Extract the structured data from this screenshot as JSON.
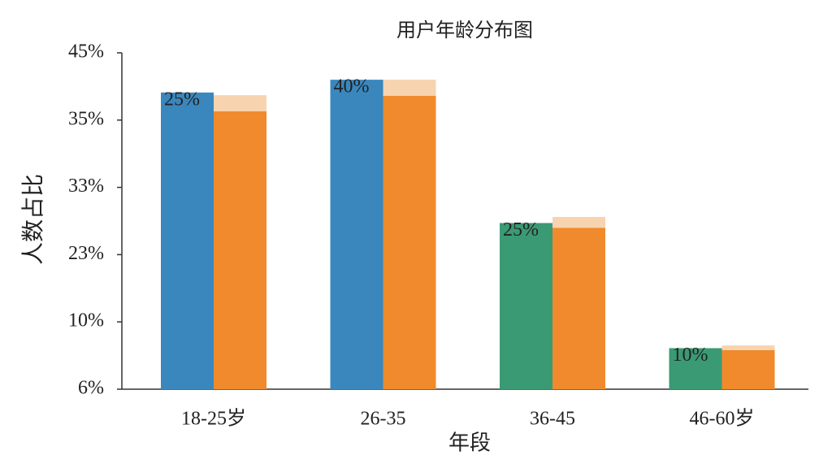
{
  "chart_data": {
    "type": "bar",
    "title": "用户年龄分布图",
    "x_label": "年段",
    "y_label": "人数占比",
    "categories": [
      "18-25岁",
      "26-35",
      "36-45",
      "46-60岁"
    ],
    "series": [
      {
        "colors": [
          "#3a87be",
          "#3a87be",
          "#3a9a74",
          "#3a9a74"
        ],
        "values": [
          4.41,
          4.6,
          2.47,
          0.61
        ]
      },
      {
        "color": "#f08a2c",
        "values": [
          4.13,
          4.36,
          2.4,
          0.58
        ]
      },
      {
        "color": "#f8d3b0",
        "values": [
          0.24,
          0.24,
          0.16,
          0.07
        ]
      }
    ],
    "annotations": [
      "25%",
      "40%",
      "25%",
      "10%"
    ],
    "ylim": [
      0,
      5
    ],
    "yticks": [
      {
        "value": 0,
        "label": "6%"
      },
      {
        "value": 1,
        "label": "10%"
      },
      {
        "value": 2,
        "label": "23%"
      },
      {
        "value": 3,
        "label": "33%"
      },
      {
        "value": 4,
        "label": "35%"
      },
      {
        "value": 5,
        "label": "45%"
      }
    ]
  }
}
